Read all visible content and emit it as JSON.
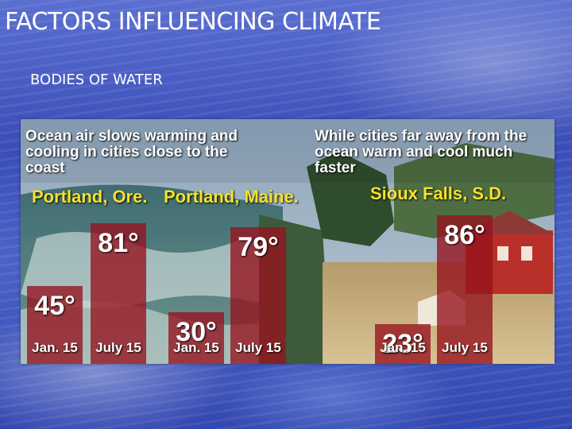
{
  "slide": {
    "title": "FACTORS INFLUENCING CLIMATE",
    "subtitle": "BODIES OF WATER"
  },
  "colors": {
    "bar": "#96121e",
    "city_label": "#f4e22a",
    "heading": "#ffffff"
  },
  "chart_data": {
    "type": "bar",
    "headings": {
      "left": "Ocean air slows warming and cooling in cities close to the coast",
      "right": "While cities far away from the ocean warm and cool much faster"
    },
    "groups": [
      {
        "city": "Portland, Ore.",
        "bars": [
          {
            "category": "Jan. 15",
            "value": 45,
            "label": "45°"
          },
          {
            "category": "July 15",
            "value": 81,
            "label": "81°"
          }
        ]
      },
      {
        "city": "Portland, Maine.",
        "bars": [
          {
            "category": "Jan. 15",
            "value": 30,
            "label": "30°"
          },
          {
            "category": "July 15",
            "value": 79,
            "label": "79°"
          }
        ]
      },
      {
        "city": "Sioux Falls, S.D.",
        "bars": [
          {
            "category": "Jan. 15",
            "value": 23,
            "label": "23°"
          },
          {
            "category": "July 15",
            "value": 86,
            "label": "86°"
          }
        ]
      }
    ],
    "title": "",
    "xlabel": "",
    "ylabel": ""
  }
}
